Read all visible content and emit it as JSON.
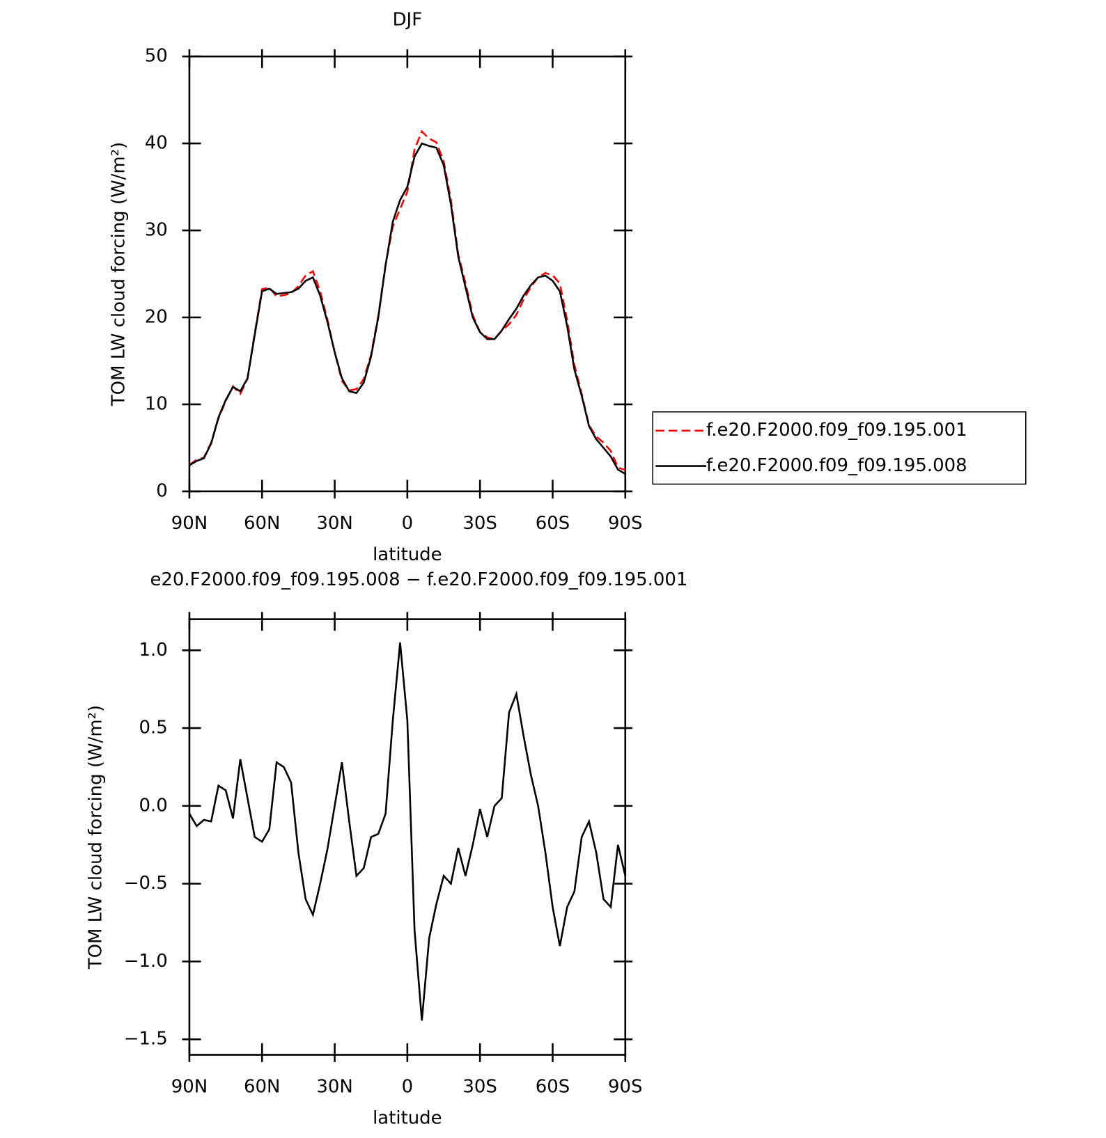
{
  "chart_data": [
    {
      "type": "line",
      "title": "DJF",
      "x_label": "latitude",
      "y_label": "TOM LW cloud forcing (W/m²)",
      "legend": "right",
      "x": [
        90,
        87,
        84,
        81,
        78,
        75,
        72,
        69,
        66,
        63,
        60,
        57,
        54,
        51,
        48,
        45,
        42,
        39,
        36,
        33,
        30,
        27,
        24,
        21,
        18,
        15,
        12,
        9,
        6,
        3,
        0,
        -3,
        -6,
        -9,
        -12,
        -15,
        -18,
        -21,
        -24,
        -27,
        -30,
        -33,
        -36,
        -39,
        -42,
        -45,
        -48,
        -51,
        -54,
        -57,
        -60,
        -63,
        -66,
        -69,
        -72,
        -75,
        -78,
        -81,
        -84,
        -87,
        -90
      ],
      "xlim": [
        90,
        -90
      ],
      "xticks": [
        {
          "value": 90,
          "label": "90N"
        },
        {
          "value": 60,
          "label": "60N"
        },
        {
          "value": 30,
          "label": "30N"
        },
        0,
        {
          "value": -30,
          "label": "30S"
        },
        {
          "value": -60,
          "label": "60S"
        },
        {
          "value": -90,
          "label": "90S"
        }
      ],
      "ylim": [
        0,
        50
      ],
      "yticks": [
        0,
        10,
        20,
        30,
        40,
        50
      ],
      "series": [
        {
          "name": "f.e20.F2000.f09_f09.195.001",
          "color": "#ff0000",
          "dash": true,
          "values": [
            3.05,
            3.63,
            3.89,
            5.6,
            8.37,
            10.4,
            12.08,
            11.2,
            12.95,
            18.2,
            23.23,
            23.45,
            22.42,
            22.55,
            22.75,
            23.6,
            24.8,
            25.3,
            23.0,
            19.78,
            16,
            12.72,
            11.6,
            11.75,
            12.9,
            15.7,
            20.18,
            26.05,
            30.45,
            32.45,
            34.45,
            39.3,
            41.38,
            40.55,
            40.13,
            37.95,
            33.5,
            27.27,
            23.95,
            20.25,
            18.32,
            17.7,
            17.5,
            18.45,
            19.2,
            20.28,
            22.05,
            23.5,
            24.6,
            25.1,
            24.85,
            23.9,
            19.65,
            14.55,
            11.2,
            7.6,
            6.3,
            5.6,
            4.65,
            2.75,
            2.45
          ]
        },
        {
          "name": "f.e20.F2000.f09_f09.195.008",
          "color": "#000000",
          "dash": false,
          "values": [
            3.0,
            3.5,
            3.8,
            5.5,
            8.5,
            10.5,
            12.0,
            11.5,
            13,
            18,
            23.0,
            23.3,
            22.7,
            22.8,
            22.9,
            23.3,
            24.2,
            24.6,
            22.5,
            19.5,
            16,
            13,
            11.5,
            11.3,
            12.5,
            15.5,
            20,
            26,
            31,
            33.5,
            35,
            38.5,
            40.0,
            39.7,
            39.5,
            37.5,
            33,
            27,
            23.5,
            20,
            18.3,
            17.5,
            17.5,
            18.5,
            19.8,
            21,
            22.5,
            23.7,
            24.6,
            24.8,
            24.2,
            23.0,
            19,
            14,
            11,
            7.5,
            6,
            5,
            4,
            2.5,
            2.0
          ]
        }
      ]
    },
    {
      "type": "line",
      "title": "e20.F2000.f09_f09.195.008 − f.e20.F2000.f09_f09.195.001",
      "x_label": "latitude",
      "y_label": "TOM LW cloud forcing (W/m²)",
      "x": [
        90,
        87,
        84,
        81,
        78,
        75,
        72,
        69,
        66,
        63,
        60,
        57,
        54,
        51,
        48,
        45,
        42,
        39,
        36,
        33,
        30,
        27,
        24,
        21,
        18,
        15,
        12,
        9,
        6,
        3,
        0,
        -3,
        -6,
        -9,
        -12,
        -15,
        -18,
        -21,
        -24,
        -27,
        -30,
        -33,
        -36,
        -39,
        -42,
        -45,
        -48,
        -51,
        -54,
        -57,
        -60,
        -63,
        -66,
        -69,
        -72,
        -75,
        -78,
        -81,
        -84,
        -87,
        -90
      ],
      "xlim": [
        90,
        -90
      ],
      "xticks": [
        {
          "value": 90,
          "label": "90N"
        },
        {
          "value": 60,
          "label": "60N"
        },
        {
          "value": 30,
          "label": "30N"
        },
        0,
        {
          "value": -30,
          "label": "30S"
        },
        {
          "value": -60,
          "label": "60S"
        },
        {
          "value": -90,
          "label": "90S"
        }
      ],
      "ylim": [
        -1.6,
        1.2
      ],
      "yticks": [
        {
          "value": -1.5,
          "label": "−1.5"
        },
        {
          "value": -1,
          "label": "−1.0"
        },
        {
          "value": -0.5,
          "label": "−0.5"
        },
        {
          "value": 0,
          "label": "0.0"
        },
        {
          "value": 0.5,
          "label": "0.5"
        },
        {
          "value": 1,
          "label": "1.0"
        }
      ],
      "series": [
        {
          "color": "#000000",
          "dash": false,
          "values": [
            -0.05,
            -0.13,
            -0.09,
            -0.1,
            0.13,
            0.1,
            -0.08,
            0.3,
            0.05,
            -0.2,
            -0.23,
            -0.15,
            0.28,
            0.25,
            0.15,
            -0.3,
            -0.6,
            -0.7,
            -0.5,
            -0.28,
            0.0,
            0.28,
            -0.1,
            -0.45,
            -0.4,
            -0.2,
            -0.18,
            -0.05,
            0.55,
            1.05,
            0.55,
            -0.8,
            -1.38,
            -0.85,
            -0.63,
            -0.45,
            -0.5,
            -0.27,
            -0.45,
            -0.25,
            -0.02,
            -0.2,
            0.0,
            0.05,
            0.6,
            0.72,
            0.45,
            0.2,
            0.0,
            -0.3,
            -0.65,
            -0.9,
            -0.65,
            -0.55,
            -0.2,
            -0.1,
            -0.3,
            -0.6,
            -0.65,
            -0.25,
            -0.45
          ]
        }
      ]
    }
  ]
}
